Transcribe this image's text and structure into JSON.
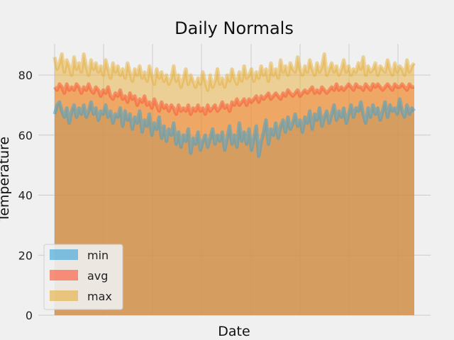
{
  "chart_data": {
    "type": "area",
    "title": "Daily Normals",
    "xlabel": "Date",
    "ylabel": "Temperature",
    "ylim": [
      0,
      90
    ],
    "yticks": [
      0,
      20,
      40,
      60,
      80
    ],
    "grid": true,
    "legend_position": "lower-left",
    "series": [
      {
        "name": "min",
        "color": "#30a2da",
        "values": [
          67,
          70,
          71,
          68,
          66,
          69,
          64,
          68,
          70,
          66,
          69,
          67,
          70,
          66,
          68,
          71,
          67,
          69,
          65,
          68,
          67,
          70,
          66,
          68,
          64,
          67,
          66,
          69,
          63,
          68,
          65,
          67,
          62,
          66,
          64,
          68,
          61,
          65,
          63,
          67,
          60,
          64,
          62,
          66,
          59,
          63,
          58,
          62,
          60,
          64,
          57,
          61,
          56,
          60,
          58,
          62,
          54,
          59,
          57,
          61,
          55,
          58,
          60,
          56,
          59,
          62,
          57,
          60,
          58,
          61,
          55,
          59,
          63,
          57,
          60,
          56,
          64,
          58,
          61,
          57,
          62,
          55,
          59,
          63,
          53,
          58,
          61,
          65,
          57,
          62,
          60,
          64,
          59,
          63,
          65,
          61,
          66,
          62,
          64,
          67,
          63,
          65,
          61,
          66,
          64,
          68,
          62,
          67,
          65,
          69,
          63,
          66,
          68,
          64,
          67,
          70,
          65,
          68,
          66,
          69,
          64,
          67,
          70,
          66,
          69,
          68,
          71,
          67,
          64,
          69,
          66,
          70,
          67,
          69,
          65,
          68,
          71,
          66,
          70,
          68,
          69,
          67,
          72,
          68,
          66,
          70,
          67,
          69,
          68
        ]
      },
      {
        "name": "avg",
        "color": "#fc4f30",
        "values": [
          76,
          75,
          77,
          76,
          74,
          77,
          75,
          76,
          75,
          77,
          76,
          74,
          76,
          75,
          77,
          75,
          74,
          76,
          75,
          73,
          75,
          74,
          76,
          73,
          72,
          74,
          73,
          75,
          72,
          73,
          71,
          74,
          72,
          73,
          70,
          72,
          71,
          73,
          70,
          71,
          69,
          72,
          70,
          68,
          71,
          69,
          70,
          68,
          70,
          69,
          67,
          70,
          68,
          69,
          68,
          70,
          67,
          69,
          68,
          70,
          68,
          69,
          67,
          70,
          68,
          69,
          70,
          68,
          69,
          71,
          69,
          70,
          68,
          71,
          70,
          72,
          70,
          71,
          72,
          70,
          72,
          71,
          72,
          73,
          71,
          73,
          72,
          73,
          74,
          72,
          73,
          74,
          73,
          72,
          74,
          73,
          75,
          74,
          73,
          74,
          75,
          73,
          74,
          75,
          74,
          75,
          76,
          74,
          75,
          74,
          76,
          75,
          74,
          75,
          76,
          75,
          77,
          75,
          76,
          75,
          76,
          77,
          76,
          75,
          77,
          76,
          76,
          75,
          77,
          76,
          75,
          77,
          76,
          77,
          76,
          75,
          76,
          77,
          76,
          75,
          77,
          76,
          76,
          77,
          76,
          75,
          77,
          76,
          76
        ]
      },
      {
        "name": "max",
        "color": "#e5ae38",
        "values": [
          86,
          82,
          84,
          87,
          81,
          85,
          83,
          80,
          86,
          82,
          84,
          81,
          87,
          83,
          80,
          85,
          82,
          84,
          81,
          83,
          80,
          85,
          82,
          79,
          84,
          81,
          83,
          80,
          82,
          79,
          84,
          81,
          78,
          82,
          80,
          83,
          79,
          81,
          78,
          83,
          80,
          77,
          82,
          79,
          81,
          78,
          80,
          77,
          79,
          83,
          78,
          80,
          76,
          79,
          82,
          77,
          80,
          78,
          76,
          79,
          77,
          81,
          78,
          75,
          80,
          76,
          78,
          82,
          77,
          79,
          76,
          80,
          78,
          82,
          79,
          77,
          81,
          78,
          83,
          79,
          80,
          82,
          78,
          81,
          79,
          83,
          80,
          82,
          78,
          84,
          80,
          82,
          79,
          85,
          81,
          83,
          80,
          84,
          82,
          81,
          86,
          82,
          80,
          83,
          81,
          85,
          82,
          80,
          84,
          81,
          83,
          87,
          80,
          82,
          84,
          81,
          83,
          80,
          82,
          85,
          81,
          83,
          80,
          82,
          81,
          84,
          82,
          86,
          80,
          83,
          81,
          82,
          84,
          80,
          83,
          82,
          81,
          85,
          82,
          80,
          84,
          81,
          83,
          82,
          80,
          85,
          81,
          83,
          84
        ]
      }
    ]
  }
}
